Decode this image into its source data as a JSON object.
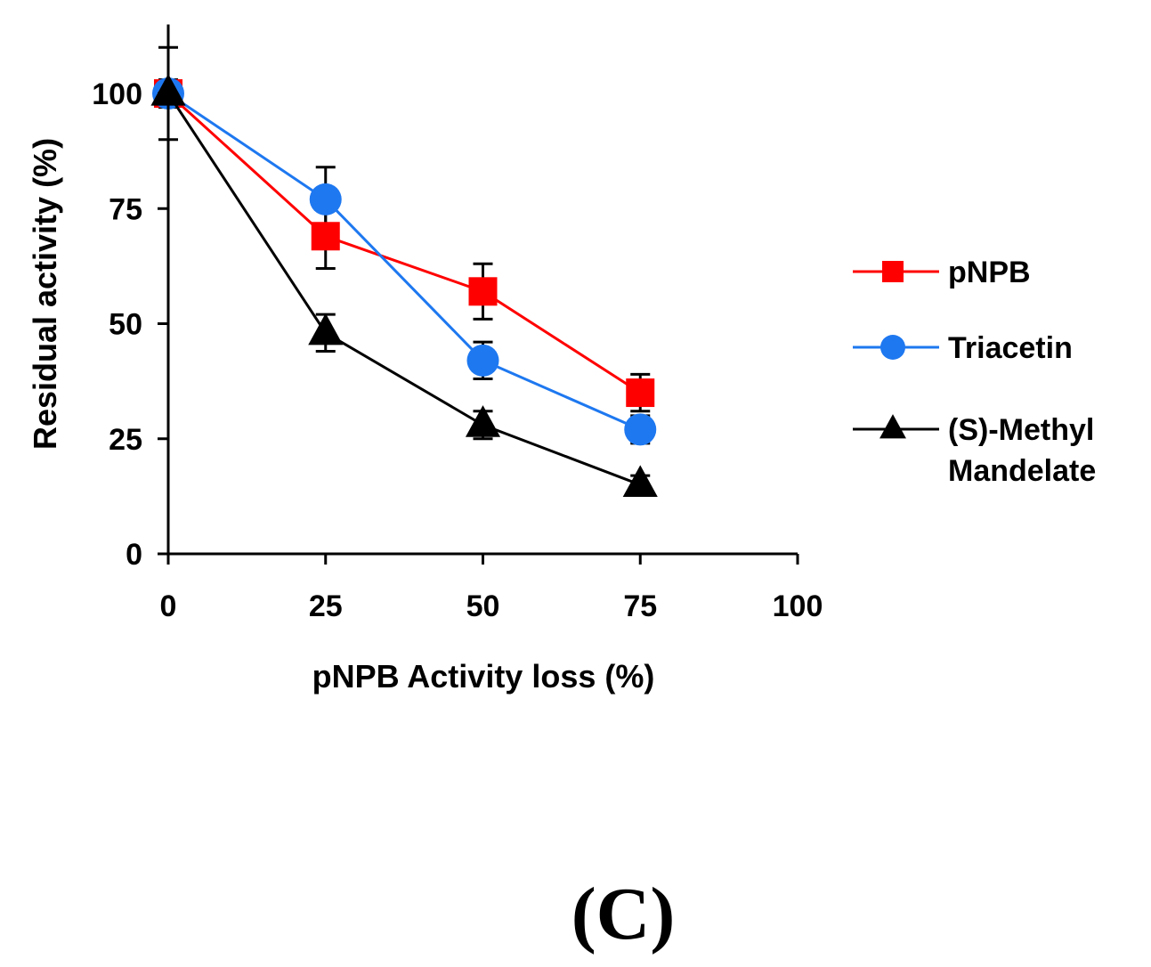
{
  "chart_data": {
    "type": "line",
    "title": "",
    "xlabel": "pNPB Activity loss (%)",
    "ylabel": "Residual activity (%)",
    "xlim": [
      0,
      100
    ],
    "ylim": [
      0,
      115
    ],
    "x_ticks": [
      0,
      25,
      50,
      75,
      100
    ],
    "y_ticks": [
      0,
      25,
      50,
      75,
      100
    ],
    "grid": false,
    "legend_position": "right",
    "series": [
      {
        "name": "pNPB",
        "color": "#ff0000",
        "marker": "square",
        "x": [
          0,
          25,
          50,
          75
        ],
        "y": [
          100,
          69,
          57,
          35
        ],
        "error": [
          10,
          7,
          6,
          4
        ]
      },
      {
        "name": "Triacetin",
        "color": "#1e78f0",
        "marker": "circle",
        "x": [
          0,
          25,
          50,
          75
        ],
        "y": [
          100,
          77,
          42,
          27
        ],
        "error": [
          3,
          7,
          4,
          3
        ]
      },
      {
        "name": "(S)-Methyl Mandelate",
        "legend_lines": [
          "(S)-Methyl",
          "Mandelate"
        ],
        "color": "#000000",
        "marker": "triangle",
        "x": [
          0,
          25,
          50,
          75
        ],
        "y": [
          100,
          48,
          28,
          15
        ],
        "error": [
          3,
          4,
          3,
          2
        ]
      }
    ]
  },
  "panel_label": "(C)"
}
